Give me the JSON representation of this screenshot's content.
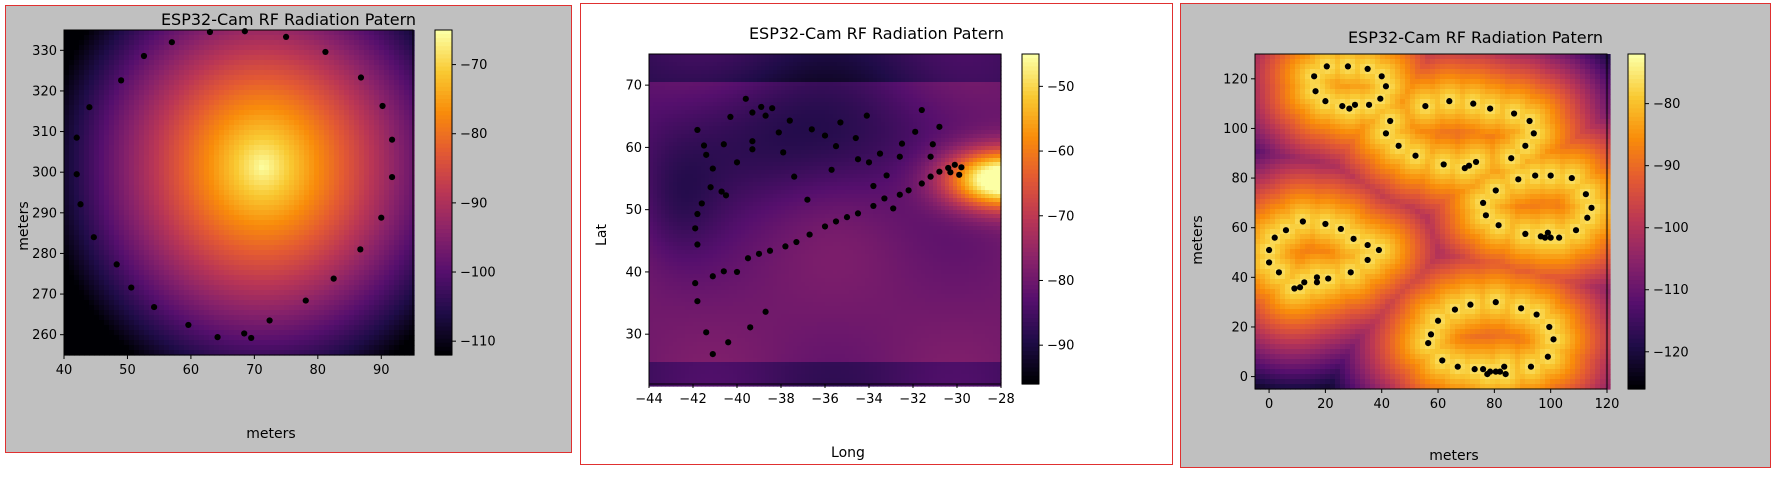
{
  "chart_data": [
    {
      "type": "heatmap",
      "title": "ESP32-Cam RF Radiation Patern",
      "xlabel": "meters",
      "ylabel": "meters",
      "xlim": [
        40,
        95
      ],
      "ylim": [
        255,
        335
      ],
      "xticks": [
        40,
        50,
        60,
        70,
        80,
        90
      ],
      "yticks": [
        260,
        270,
        280,
        290,
        300,
        310,
        320,
        330
      ],
      "colorbar": {
        "range": [
          -112,
          -65
        ],
        "ticks": [
          -70,
          -80,
          -90,
          -100,
          -110
        ],
        "tick_labels": [
          "−70",
          "−80",
          "−90",
          "−100",
          "−110"
        ]
      },
      "background": "#c0c0c0",
      "points": [
        {
          "x": 63,
          "y": 334.5
        },
        {
          "x": 68.5,
          "y": 334.7
        },
        {
          "x": 75,
          "y": 333.3
        },
        {
          "x": 81.2,
          "y": 329.6
        },
        {
          "x": 57,
          "y": 332
        },
        {
          "x": 52.6,
          "y": 328.6
        },
        {
          "x": 49,
          "y": 322.6
        },
        {
          "x": 86.8,
          "y": 323.3
        },
        {
          "x": 44,
          "y": 316
        },
        {
          "x": 42,
          "y": 308.5
        },
        {
          "x": 90.2,
          "y": 316.3
        },
        {
          "x": 91.7,
          "y": 308
        },
        {
          "x": 42,
          "y": 299.5
        },
        {
          "x": 91.7,
          "y": 298.8
        },
        {
          "x": 42.6,
          "y": 292.1
        },
        {
          "x": 90,
          "y": 288.8
        },
        {
          "x": 44.7,
          "y": 284
        },
        {
          "x": 86.7,
          "y": 281
        },
        {
          "x": 48.3,
          "y": 277.3
        },
        {
          "x": 82.5,
          "y": 273.8
        },
        {
          "x": 50.6,
          "y": 271.6
        },
        {
          "x": 78.1,
          "y": 268.4
        },
        {
          "x": 54.2,
          "y": 266.8
        },
        {
          "x": 72.4,
          "y": 263.5
        },
        {
          "x": 59.6,
          "y": 262.4
        },
        {
          "x": 68.4,
          "y": 260.3
        },
        {
          "x": 64.2,
          "y": 259.4
        },
        {
          "x": 69.5,
          "y": 259.2
        }
      ]
    },
    {
      "type": "heatmap",
      "title": "ESP32-Cam RF Radiation Patern",
      "xlabel": "Long",
      "ylabel": "Lat",
      "xlim": [
        -44,
        -28
      ],
      "ylim": [
        22,
        75
      ],
      "xticks": [
        -44,
        -42,
        -40,
        -38,
        -36,
        -34,
        -32,
        -30,
        -28
      ],
      "x_tick_labels": [
        "−44",
        "−42",
        "−40",
        "−38",
        "−36",
        "−34",
        "−32",
        "−30",
        "−28"
      ],
      "yticks": [
        30,
        40,
        50,
        60,
        70
      ],
      "colorbar": {
        "range": [
          -96,
          -45
        ],
        "ticks": [
          -50,
          -60,
          -70,
          -80,
          -90
        ],
        "tick_labels": [
          "−50",
          "−60",
          "−70",
          "−80",
          "−90"
        ]
      },
      "background": "#ffffff",
      "points": [
        {
          "x": -41.1,
          "y": 26.8
        },
        {
          "x": -40.4,
          "y": 28.7
        },
        {
          "x": -41.4,
          "y": 30.3
        },
        {
          "x": -39.4,
          "y": 31.1
        },
        {
          "x": -38.7,
          "y": 33.6
        },
        {
          "x": -41.8,
          "y": 35.3
        },
        {
          "x": -41.9,
          "y": 38.2
        },
        {
          "x": -41.1,
          "y": 39.3
        },
        {
          "x": -40.6,
          "y": 40.1
        },
        {
          "x": -40,
          "y": 40
        },
        {
          "x": -39.5,
          "y": 42.2
        },
        {
          "x": -39,
          "y": 42.9
        },
        {
          "x": -38.5,
          "y": 43.4
        },
        {
          "x": -37.8,
          "y": 44.1
        },
        {
          "x": -37.3,
          "y": 44.8
        },
        {
          "x": -36.7,
          "y": 46
        },
        {
          "x": -36,
          "y": 47.3
        },
        {
          "x": -35.5,
          "y": 48.1
        },
        {
          "x": -35,
          "y": 48.8
        },
        {
          "x": -34.5,
          "y": 49.4
        },
        {
          "x": -33.8,
          "y": 50.6
        },
        {
          "x": -33.3,
          "y": 51.8
        },
        {
          "x": -32.9,
          "y": 50.2
        },
        {
          "x": -32.6,
          "y": 52.4
        },
        {
          "x": -32.2,
          "y": 53.1
        },
        {
          "x": -31.6,
          "y": 54.2
        },
        {
          "x": -31.2,
          "y": 55.3
        },
        {
          "x": -30.8,
          "y": 56.1
        },
        {
          "x": -30.4,
          "y": 56.7
        },
        {
          "x": -30.1,
          "y": 57.2
        },
        {
          "x": -29.8,
          "y": 56.8
        },
        {
          "x": -29.9,
          "y": 55.6
        },
        {
          "x": -30.3,
          "y": 56
        },
        {
          "x": -31.2,
          "y": 58.5
        },
        {
          "x": -31.1,
          "y": 60.5
        },
        {
          "x": -30.8,
          "y": 63.3
        },
        {
          "x": -31.6,
          "y": 66
        },
        {
          "x": -31.9,
          "y": 62.5
        },
        {
          "x": -32.5,
          "y": 60.6
        },
        {
          "x": -33.5,
          "y": 59
        },
        {
          "x": -34.6,
          "y": 61.5
        },
        {
          "x": -35.3,
          "y": 64
        },
        {
          "x": -34.1,
          "y": 65.1
        },
        {
          "x": -36,
          "y": 61.9
        },
        {
          "x": -36.6,
          "y": 62.9
        },
        {
          "x": -37.6,
          "y": 64.3
        },
        {
          "x": -38.1,
          "y": 62.4
        },
        {
          "x": -38.7,
          "y": 65.1
        },
        {
          "x": -39.3,
          "y": 65.6
        },
        {
          "x": -39.6,
          "y": 67.8
        },
        {
          "x": -38.4,
          "y": 66.3
        },
        {
          "x": -38.9,
          "y": 66.5
        },
        {
          "x": -40.3,
          "y": 64.9
        },
        {
          "x": -39.3,
          "y": 61
        },
        {
          "x": -40,
          "y": 57.6
        },
        {
          "x": -41.1,
          "y": 56.6
        },
        {
          "x": -41.5,
          "y": 60.3
        },
        {
          "x": -41.8,
          "y": 62.8
        },
        {
          "x": -40.6,
          "y": 60.5
        },
        {
          "x": -39.3,
          "y": 59.7
        },
        {
          "x": -37.9,
          "y": 59.2
        },
        {
          "x": -37.4,
          "y": 55.3
        },
        {
          "x": -36.8,
          "y": 51.6
        },
        {
          "x": -35.7,
          "y": 56.4
        },
        {
          "x": -35.5,
          "y": 60.2
        },
        {
          "x": -34.5,
          "y": 58.1
        },
        {
          "x": -34,
          "y": 57.6
        },
        {
          "x": -33.8,
          "y": 53.8
        },
        {
          "x": -33.2,
          "y": 55.5
        },
        {
          "x": -32.6,
          "y": 58.5
        },
        {
          "x": -41.2,
          "y": 53.6
        },
        {
          "x": -40.7,
          "y": 52.9
        },
        {
          "x": -40.5,
          "y": 52.3
        },
        {
          "x": -41.4,
          "y": 58.8
        },
        {
          "x": -41.8,
          "y": 49.3
        },
        {
          "x": -41.9,
          "y": 47
        },
        {
          "x": -41.8,
          "y": 44.4
        },
        {
          "x": -41.6,
          "y": 51
        }
      ]
    },
    {
      "type": "heatmap",
      "title": "ESP32-Cam RF Radiation Patern",
      "xlabel": "meters",
      "ylabel": "meters",
      "xlim": [
        -5,
        120
      ],
      "ylim": [
        -5,
        130
      ],
      "xticks": [
        0,
        20,
        40,
        60,
        80,
        100,
        120
      ],
      "yticks": [
        0,
        20,
        40,
        60,
        80,
        100,
        120
      ],
      "colorbar": {
        "range": [
          -126,
          -72
        ],
        "ticks": [
          -80,
          -90,
          -100,
          -110,
          -120
        ],
        "tick_labels": [
          "−80",
          "−90",
          "−100",
          "−110",
          "−120"
        ]
      },
      "background": "#c0c0c0",
      "points": [
        {
          "x": 16,
          "y": 121
        },
        {
          "x": 20.5,
          "y": 125
        },
        {
          "x": 28,
          "y": 125
        },
        {
          "x": 35,
          "y": 124
        },
        {
          "x": 40,
          "y": 121
        },
        {
          "x": 41.5,
          "y": 117
        },
        {
          "x": 16.5,
          "y": 115
        },
        {
          "x": 20,
          "y": 111
        },
        {
          "x": 26,
          "y": 109
        },
        {
          "x": 28.5,
          "y": 108
        },
        {
          "x": 30.5,
          "y": 109.5
        },
        {
          "x": 35.5,
          "y": 109.5
        },
        {
          "x": 39.5,
          "y": 112
        },
        {
          "x": 43,
          "y": 103
        },
        {
          "x": 41.5,
          "y": 98
        },
        {
          "x": 46,
          "y": 93
        },
        {
          "x": 52,
          "y": 89
        },
        {
          "x": 55.5,
          "y": 109
        },
        {
          "x": 64,
          "y": 111
        },
        {
          "x": 72.5,
          "y": 110
        },
        {
          "x": 78.5,
          "y": 108
        },
        {
          "x": 87,
          "y": 106
        },
        {
          "x": 92.5,
          "y": 103
        },
        {
          "x": 94,
          "y": 98
        },
        {
          "x": 91,
          "y": 93
        },
        {
          "x": 86,
          "y": 88
        },
        {
          "x": 73.5,
          "y": 86.5
        },
        {
          "x": 71,
          "y": 85
        },
        {
          "x": 69.5,
          "y": 84
        },
        {
          "x": 62,
          "y": 85.5
        },
        {
          "x": 88.5,
          "y": 79.5
        },
        {
          "x": 94.5,
          "y": 81
        },
        {
          "x": 100,
          "y": 81
        },
        {
          "x": 107.5,
          "y": 80
        },
        {
          "x": 112.5,
          "y": 73.5
        },
        {
          "x": 114.5,
          "y": 68
        },
        {
          "x": 113,
          "y": 64
        },
        {
          "x": 109,
          "y": 59
        },
        {
          "x": 80.5,
          "y": 75
        },
        {
          "x": 76,
          "y": 70
        },
        {
          "x": 77,
          "y": 65
        },
        {
          "x": 81.5,
          "y": 61
        },
        {
          "x": 91,
          "y": 57.5
        },
        {
          "x": 96.5,
          "y": 56.5
        },
        {
          "x": 98,
          "y": 56
        },
        {
          "x": 99,
          "y": 58
        },
        {
          "x": 100,
          "y": 56
        },
        {
          "x": 103,
          "y": 56
        },
        {
          "x": 12,
          "y": 62.5
        },
        {
          "x": 20,
          "y": 61.5
        },
        {
          "x": 25.5,
          "y": 59.5
        },
        {
          "x": 30,
          "y": 55.5
        },
        {
          "x": 35,
          "y": 53
        },
        {
          "x": 39,
          "y": 51
        },
        {
          "x": 35,
          "y": 47
        },
        {
          "x": 29,
          "y": 42
        },
        {
          "x": 21,
          "y": 39.5
        },
        {
          "x": 17,
          "y": 38
        },
        {
          "x": 17,
          "y": 40
        },
        {
          "x": 12.5,
          "y": 38
        },
        {
          "x": 11,
          "y": 36
        },
        {
          "x": 9,
          "y": 35.5
        },
        {
          "x": 3.5,
          "y": 42
        },
        {
          "x": 0,
          "y": 46
        },
        {
          "x": 0,
          "y": 51
        },
        {
          "x": 2,
          "y": 56
        },
        {
          "x": 6,
          "y": 59
        },
        {
          "x": 60,
          "y": 22.5
        },
        {
          "x": 57.5,
          "y": 17
        },
        {
          "x": 56.5,
          "y": 13.5
        },
        {
          "x": 61.5,
          "y": 6.5
        },
        {
          "x": 67,
          "y": 4
        },
        {
          "x": 66,
          "y": 27
        },
        {
          "x": 71.5,
          "y": 29
        },
        {
          "x": 80.5,
          "y": 30
        },
        {
          "x": 89.5,
          "y": 27.5
        },
        {
          "x": 95,
          "y": 25
        },
        {
          "x": 99.5,
          "y": 20
        },
        {
          "x": 101,
          "y": 15
        },
        {
          "x": 99,
          "y": 8
        },
        {
          "x": 93,
          "y": 4
        },
        {
          "x": 83.5,
          "y": 4
        },
        {
          "x": 82,
          "y": 2
        },
        {
          "x": 80.5,
          "y": 2
        },
        {
          "x": 78.5,
          "y": 2
        },
        {
          "x": 77.5,
          "y": 1
        },
        {
          "x": 76,
          "y": 3
        },
        {
          "x": 73,
          "y": 3
        },
        {
          "x": 84,
          "y": 1
        }
      ]
    }
  ]
}
